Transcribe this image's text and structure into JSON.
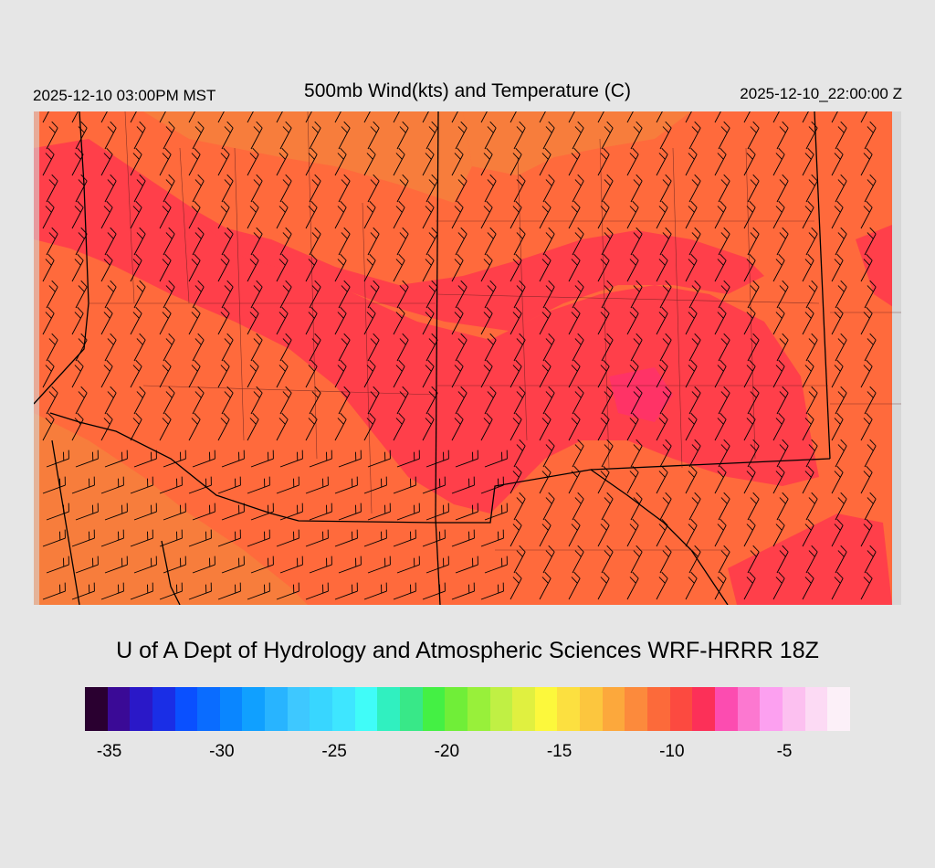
{
  "header": {
    "valid_time": "2025-12-10 03:00PM MST",
    "title": "500mb Wind(kts) and Temperature (C)",
    "init_time": "2025-12-10_22:00:00 Z"
  },
  "footer": {
    "credit": "U of A Dept of Hydrology and Atmospheric Sciences WRF-HRRR 18Z"
  },
  "map": {
    "background_color": "#ff6a3c",
    "warm_band_color": "#f77d3c",
    "cold_band_color": "#ff3f4a",
    "coldest_color": "#ff3366",
    "border_color": "#000000"
  },
  "colorbar": {
    "colors": [
      "#2a0030",
      "#3a0a96",
      "#2a18c8",
      "#1a2ee6",
      "#0a50ff",
      "#0a6cff",
      "#0a86ff",
      "#10a0ff",
      "#28b4ff",
      "#3ec8ff",
      "#38d6ff",
      "#3ee6ff",
      "#40fcf8",
      "#30f0c0",
      "#38e888",
      "#44f044",
      "#70ee38",
      "#98f03a",
      "#c0f044",
      "#e0f040",
      "#fcf83c",
      "#fce040",
      "#fcc63e",
      "#fca83c",
      "#fc8a3c",
      "#fc6a3a",
      "#fc4a40",
      "#fc3058",
      "#fc4cb0",
      "#fc78d0",
      "#fca0f0",
      "#fcc0f0",
      "#fcdaf4",
      "#fcf0f8"
    ],
    "tick_labels": [
      "-35",
      "-30",
      "-25",
      "-20",
      "-15",
      "-10",
      "-5"
    ],
    "tick_values": [
      -35,
      -30,
      -25,
      -20,
      -15,
      -10,
      -5
    ],
    "value_min": -36,
    "value_step": 1
  }
}
